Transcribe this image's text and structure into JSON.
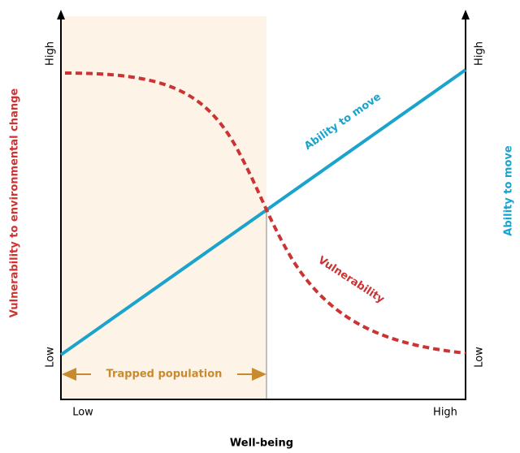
{
  "diagram": {
    "x_axis": {
      "label": "Well-being",
      "low": "Low",
      "high": "High"
    },
    "left_axis": {
      "label": "Vulnerability to environmental change",
      "low": "Low",
      "high": "High"
    },
    "right_axis": {
      "label": "Ability to move",
      "low": "Low",
      "high": "High"
    },
    "curves": {
      "ability": "Ability to move",
      "vulnerability": "Vulnerability"
    },
    "region": "Trapped population"
  }
}
